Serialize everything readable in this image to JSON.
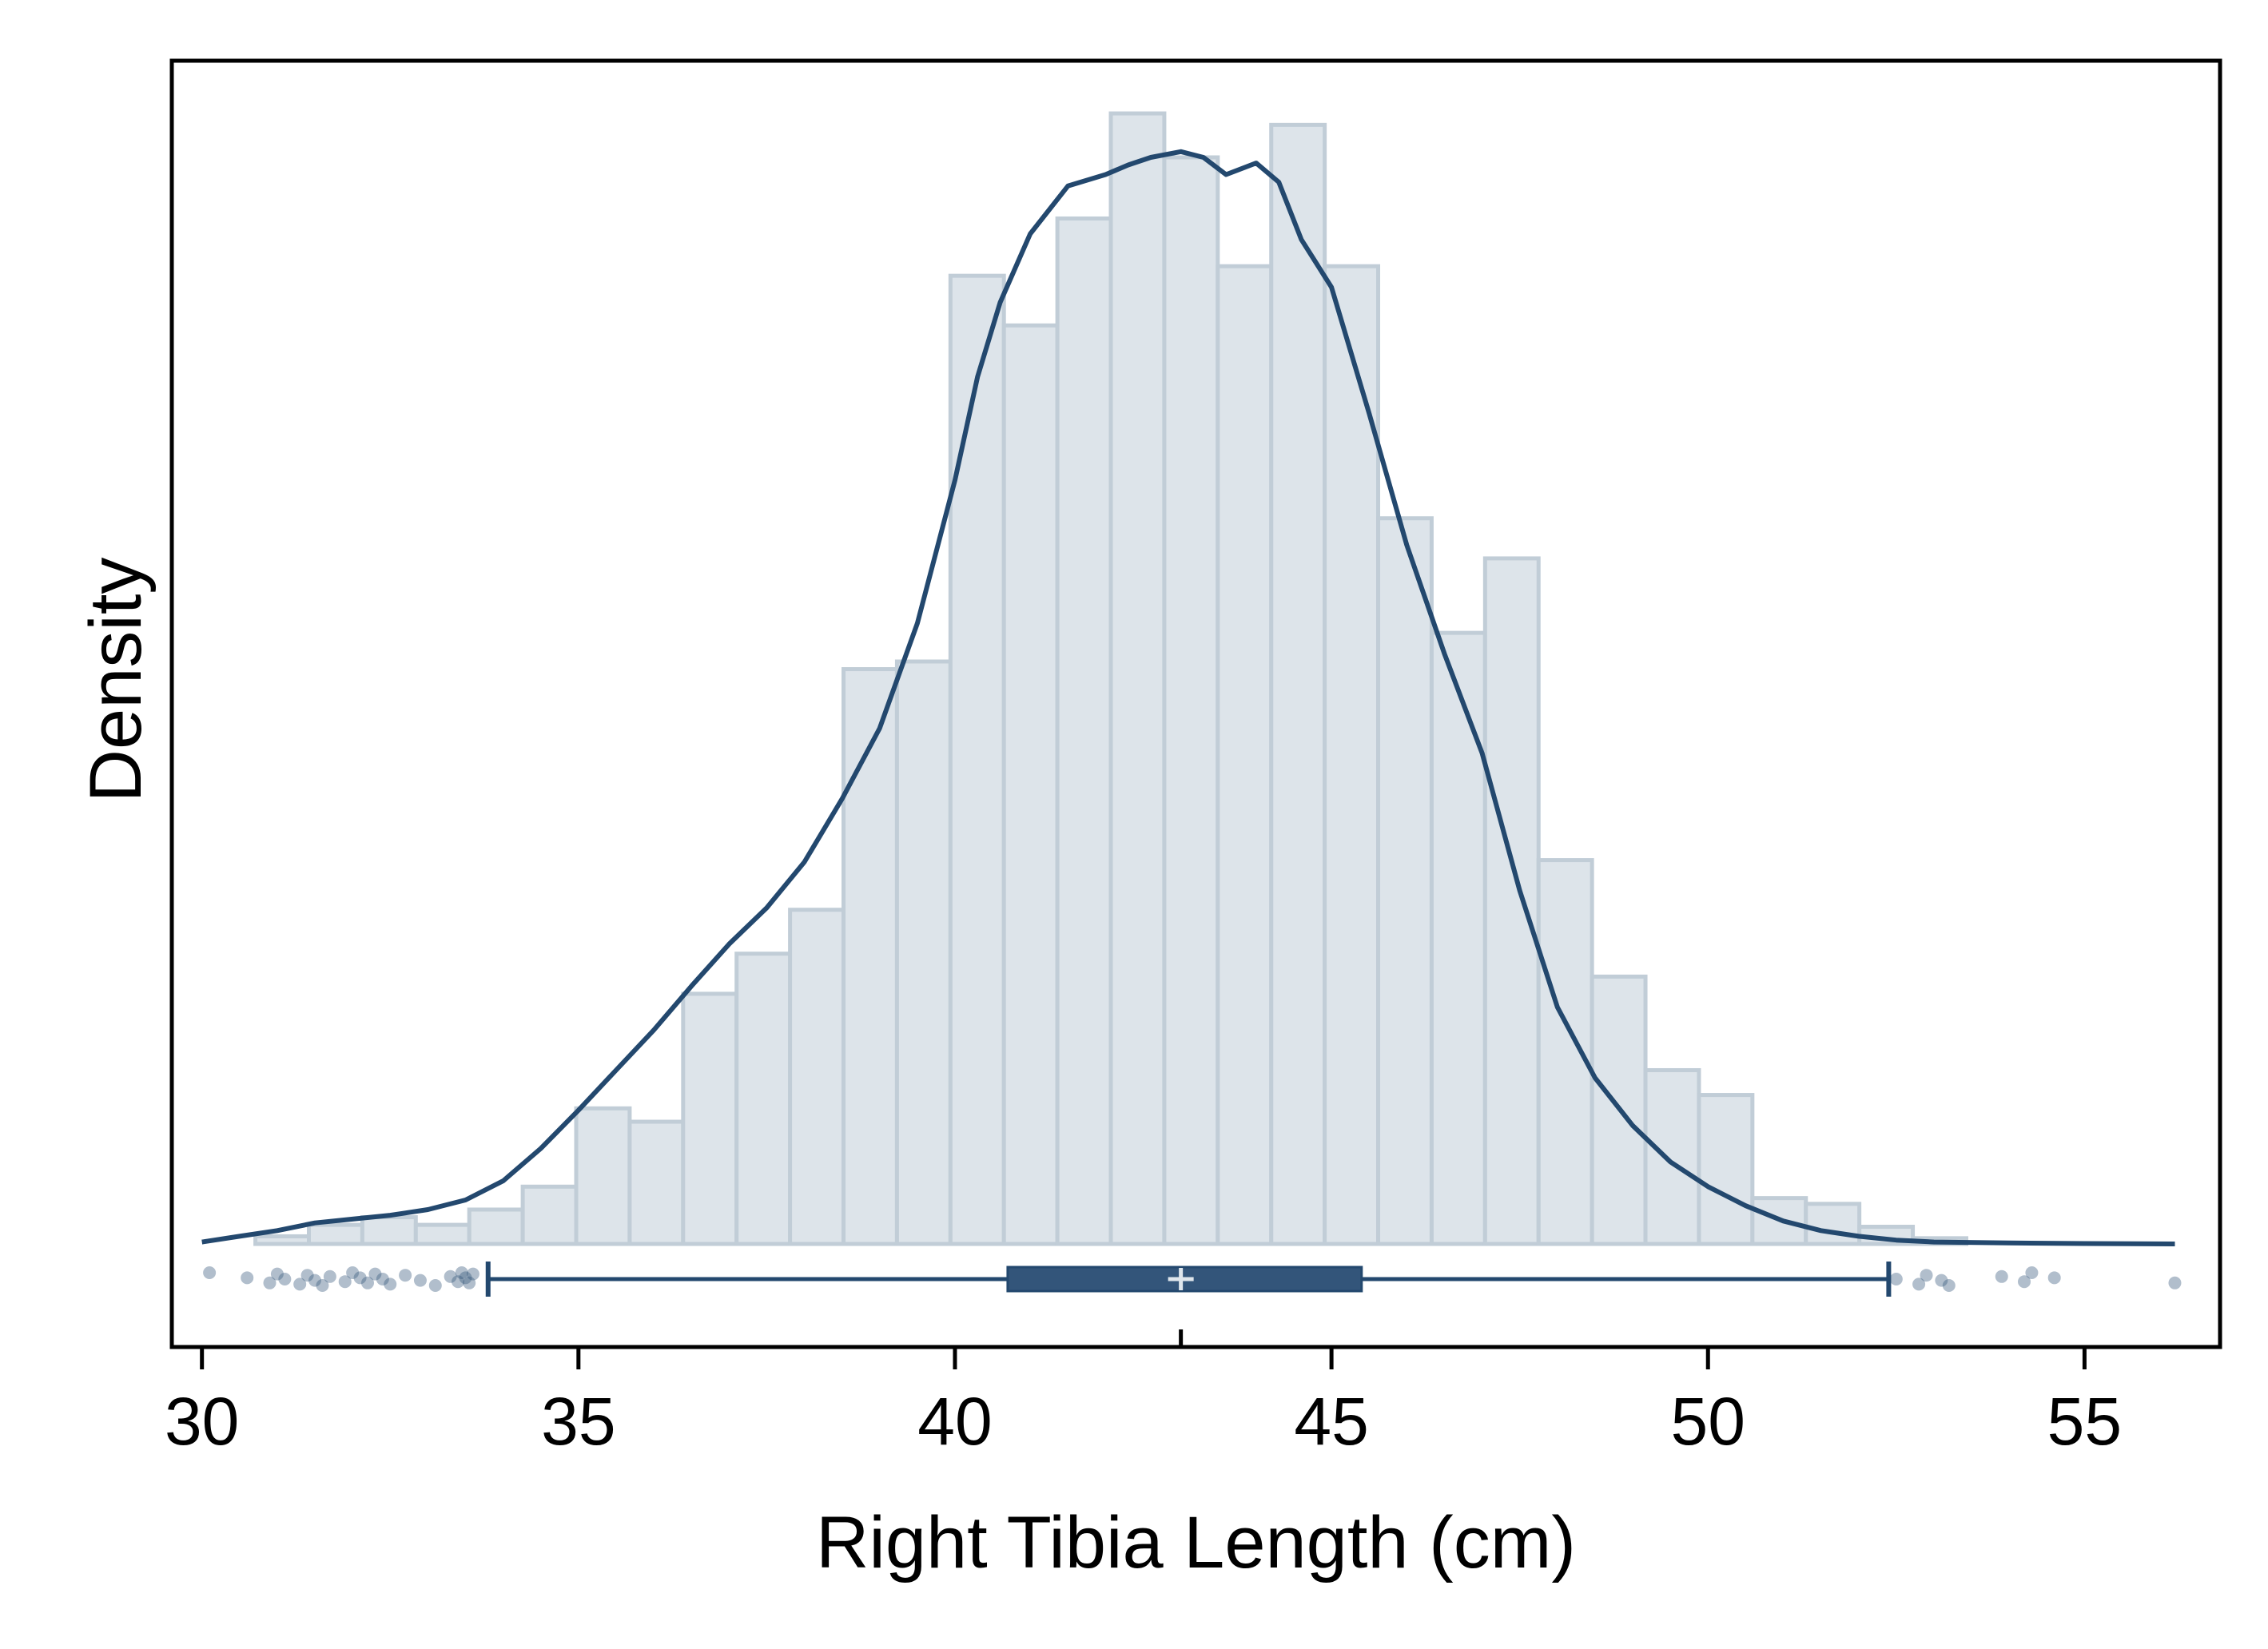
{
  "chart_data": {
    "type": "histogram",
    "xlabel": "Right Tibia Length (cm)",
    "ylabel": "Density",
    "xlim": [
      29.6,
      56.8
    ],
    "x_ticks": [
      30,
      35,
      40,
      45,
      50,
      55
    ],
    "x_tick_labels": [
      "30",
      "35",
      "40",
      "45",
      "50",
      "55"
    ],
    "y_ticks_shown": false,
    "grid": false,
    "legend": "none",
    "colors": {
      "bar_fill": "#dde4ea",
      "bar_stroke": "#c1cdd7",
      "line": "#23486e",
      "box_fill": "#33557a",
      "frame": "#000000"
    },
    "histogram": {
      "bin_width": 0.71,
      "bins": [
        {
          "x0": 30.71,
          "x1": 31.42,
          "density": 0.0004
        },
        {
          "x0": 31.42,
          "x1": 32.13,
          "density": 0.001
        },
        {
          "x0": 32.13,
          "x1": 32.84,
          "density": 0.0014
        },
        {
          "x0": 32.84,
          "x1": 33.55,
          "density": 0.001
        },
        {
          "x0": 33.55,
          "x1": 34.26,
          "density": 0.0018
        },
        {
          "x0": 34.26,
          "x1": 34.97,
          "density": 0.003
        },
        {
          "x0": 34.97,
          "x1": 35.68,
          "density": 0.0071
        },
        {
          "x0": 35.68,
          "x1": 36.39,
          "density": 0.0064
        },
        {
          "x0": 36.39,
          "x1": 37.1,
          "density": 0.0131
        },
        {
          "x0": 37.1,
          "x1": 37.81,
          "density": 0.0152
        },
        {
          "x0": 37.81,
          "x1": 38.52,
          "density": 0.0175
        },
        {
          "x0": 38.52,
          "x1": 39.23,
          "density": 0.0301
        },
        {
          "x0": 39.23,
          "x1": 39.94,
          "density": 0.0305
        },
        {
          "x0": 39.94,
          "x1": 40.65,
          "density": 0.0507
        },
        {
          "x0": 40.65,
          "x1": 41.36,
          "density": 0.0481
        },
        {
          "x0": 41.36,
          "x1": 42.07,
          "density": 0.0537
        },
        {
          "x0": 42.07,
          "x1": 42.78,
          "density": 0.0592
        },
        {
          "x0": 42.78,
          "x1": 43.49,
          "density": 0.0569
        },
        {
          "x0": 43.49,
          "x1": 44.2,
          "density": 0.0512
        },
        {
          "x0": 44.2,
          "x1": 44.91,
          "density": 0.0586
        },
        {
          "x0": 44.91,
          "x1": 45.62,
          "density": 0.0512
        },
        {
          "x0": 45.62,
          "x1": 46.33,
          "density": 0.038
        },
        {
          "x0": 46.33,
          "x1": 47.04,
          "density": 0.032
        },
        {
          "x0": 47.04,
          "x1": 47.75,
          "density": 0.0359
        },
        {
          "x0": 47.75,
          "x1": 48.46,
          "density": 0.0201
        },
        {
          "x0": 48.46,
          "x1": 49.17,
          "density": 0.014
        },
        {
          "x0": 49.17,
          "x1": 49.88,
          "density": 0.0091
        },
        {
          "x0": 49.88,
          "x1": 50.59,
          "density": 0.0078
        },
        {
          "x0": 50.59,
          "x1": 51.3,
          "density": 0.0024
        },
        {
          "x0": 51.3,
          "x1": 52.01,
          "density": 0.0021
        },
        {
          "x0": 52.01,
          "x1": 52.72,
          "density": 0.0009
        },
        {
          "x0": 52.72,
          "x1": 53.43,
          "density": 0.0003
        }
      ]
    },
    "density_curve": {
      "x": [
        30.0,
        30.5,
        31.0,
        31.5,
        32.0,
        32.5,
        33.0,
        33.5,
        34.0,
        34.5,
        35.0,
        35.5,
        36.0,
        36.5,
        37.0,
        37.5,
        38.0,
        38.5,
        39.0,
        39.5,
        40.0,
        40.3,
        40.6,
        41.0,
        41.5,
        42.0,
        42.3,
        42.6,
        43.0,
        43.3,
        43.6,
        44.0,
        44.3,
        44.6,
        45.0,
        45.5,
        46.0,
        46.5,
        47.0,
        47.5,
        48.0,
        48.5,
        49.0,
        49.5,
        50.0,
        50.5,
        51.0,
        51.5,
        52.0,
        52.5,
        53.0,
        54.0,
        55.0,
        56.2
      ],
      "y": [
        0.0001,
        0.0004,
        0.0007,
        0.0011,
        0.0013,
        0.0015,
        0.0018,
        0.0023,
        0.0033,
        0.005,
        0.007,
        0.0091,
        0.0112,
        0.0135,
        0.0157,
        0.0176,
        0.02,
        0.0233,
        0.027,
        0.0325,
        0.04,
        0.0454,
        0.0493,
        0.0529,
        0.0554,
        0.056,
        0.0565,
        0.0569,
        0.0572,
        0.0569,
        0.056,
        0.0566,
        0.0556,
        0.0526,
        0.0501,
        0.0435,
        0.0366,
        0.0309,
        0.0257,
        0.0185,
        0.0124,
        0.0087,
        0.0062,
        0.0043,
        0.003,
        0.002,
        0.0012,
        0.0007,
        0.0004,
        0.0002,
        0.0001,
        5e-05,
        2e-05,
        0.0
      ]
    },
    "boxplot": {
      "whisker_low": 33.8,
      "q1": 40.7,
      "median": 43.0,
      "mean": 43.0,
      "q3": 45.4,
      "whisker_high": 52.4,
      "outliers": [
        30.1,
        30.6,
        30.9,
        31.0,
        31.1,
        31.3,
        31.4,
        31.5,
        31.6,
        31.7,
        31.9,
        32.0,
        32.1,
        32.2,
        32.3,
        32.4,
        32.5,
        32.7,
        32.9,
        33.1,
        33.3,
        33.4,
        33.45,
        33.5,
        33.55,
        33.6,
        52.5,
        52.8,
        52.9,
        53.1,
        53.2,
        53.9,
        54.2,
        54.3,
        54.6,
        56.2
      ]
    }
  }
}
